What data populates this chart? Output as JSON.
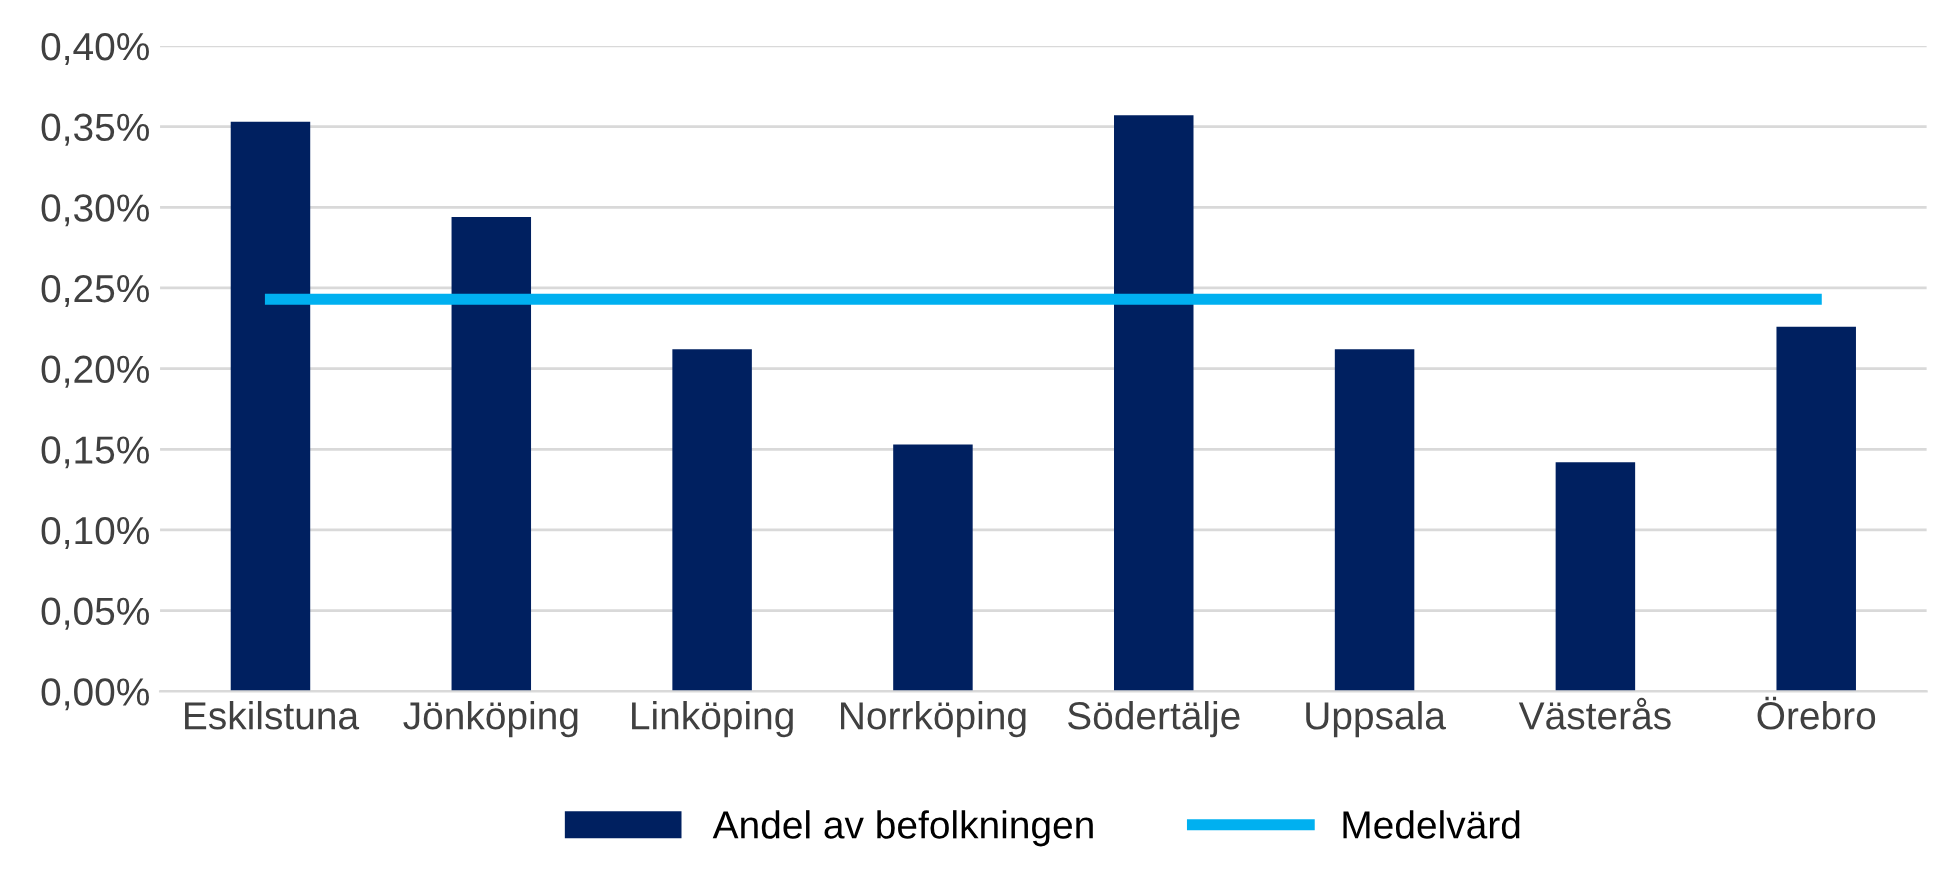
{
  "chart_data": {
    "type": "bar",
    "categories": [
      "Eskilstuna",
      "Jönköping",
      "Linköping",
      "Norrköping",
      "Södertälje",
      "Uppsala",
      "Västerås",
      "Örebro"
    ],
    "series": [
      {
        "name": "Andel av befolkningen",
        "color": "#002060",
        "values": [
          0.353,
          0.294,
          0.212,
          0.153,
          0.357,
          0.212,
          0.142,
          0.226
        ]
      },
      {
        "name": "Medelvärd",
        "type": "line",
        "color": "#00b0f0",
        "values": [
          0.243,
          0.243,
          0.243,
          0.243,
          0.243,
          0.243,
          0.243,
          0.243
        ]
      }
    ],
    "ylim": [
      0,
      0.4
    ],
    "yticks": [
      {
        "value": 0,
        "label": "0,00%"
      },
      {
        "value": 0.05,
        "label": "0,05%"
      },
      {
        "value": 0.1,
        "label": "0,10%"
      },
      {
        "value": 0.15,
        "label": "0,15%"
      },
      {
        "value": 0.2,
        "label": "0,20%"
      },
      {
        "value": 0.25,
        "label": "0,25%"
      },
      {
        "value": 0.3,
        "label": "0,30%"
      },
      {
        "value": 0.35,
        "label": "0,35%"
      },
      {
        "value": 0.4,
        "label": "0,40%"
      }
    ],
    "grid": "y",
    "legend": "bottom"
  }
}
